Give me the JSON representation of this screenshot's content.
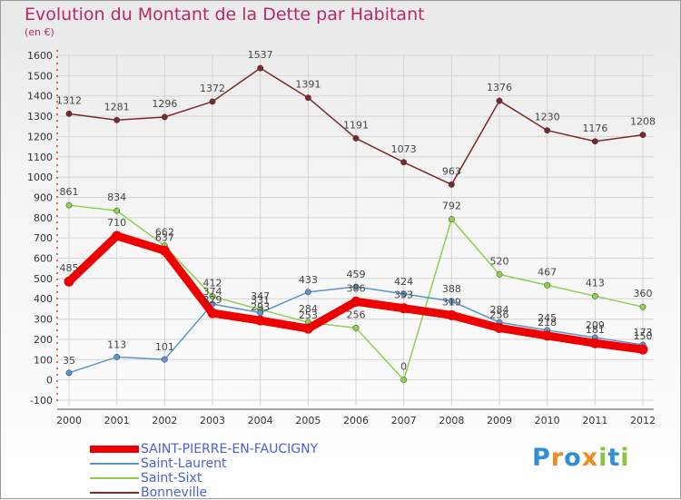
{
  "chart_data": {
    "type": "line",
    "title": "Evolution du Montant de la Dette par Habitant",
    "unit_label": "(en €)",
    "x": [
      "2000",
      "2001",
      "2002",
      "2003",
      "2004",
      "2005",
      "2006",
      "2007",
      "2008",
      "2009",
      "2010",
      "2011",
      "2012"
    ],
    "ylim": [
      -100,
      1600
    ],
    "yticks": [
      "-100",
      "0",
      "100",
      "200",
      "300",
      "400",
      "500",
      "600",
      "700",
      "800",
      "900",
      "1000",
      "1100",
      "1200",
      "1300",
      "1400",
      "1500",
      "1600"
    ],
    "grid": true,
    "series": [
      {
        "name": "Bonneville",
        "color": "#7a2a2a",
        "values": [
          1312,
          1281,
          1296,
          1372,
          1537,
          1391,
          1191,
          1073,
          963,
          1376,
          1230,
          1176,
          1208
        ],
        "labels": [
          "1312",
          "1281",
          "1296",
          "1372",
          "1537",
          "1391",
          "1191",
          "1073",
          "963",
          "1376",
          "1230",
          "1176",
          "1208"
        ]
      },
      {
        "name": "Saint-Sixt",
        "color": "#8ed04f",
        "values": [
          861,
          834,
          662,
          412,
          347,
          284,
          256,
          0,
          792,
          520,
          467,
          413,
          360
        ],
        "labels": [
          "861",
          "834",
          "662",
          "412",
          "347",
          "284",
          "256",
          "0",
          "792",
          "520",
          "467",
          "413",
          "360"
        ]
      },
      {
        "name": "Saint-Laurent",
        "color": "#5a95cd",
        "values": [
          35,
          113,
          101,
          374,
          331,
          433,
          459,
          424,
          388,
          284,
          245,
          209,
          173
        ],
        "labels": [
          "35",
          "113",
          "101",
          "374",
          "331",
          "433",
          "459",
          "424",
          "388",
          "284",
          "245",
          "209",
          "173"
        ]
      },
      {
        "name": "SAINT-PIERRE-EN-FAUCIGNY",
        "color": "#ee0000",
        "values": [
          485,
          710,
          637,
          329,
          293,
          253,
          386,
          353,
          319,
          256,
          218,
          181,
          150
        ],
        "labels": [
          "485",
          "710",
          "637",
          "329",
          "293",
          "253",
          "386",
          "353",
          "319",
          "256",
          "218",
          "181",
          "150"
        ]
      }
    ],
    "legend": [
      "SAINT-PIERRE-EN-FAUCIGNY",
      "Saint-Laurent",
      "Saint-Sixt",
      "Bonneville"
    ]
  },
  "logo": {
    "letters": [
      "P",
      "r",
      "o",
      "x",
      "i",
      "t",
      "i"
    ],
    "colors": [
      "#2f8fd0",
      "#f08c1e",
      "#2f8fd0",
      "#f08c1e",
      "#8cc63e",
      "#2f8fd0",
      "#8cc63e"
    ]
  }
}
